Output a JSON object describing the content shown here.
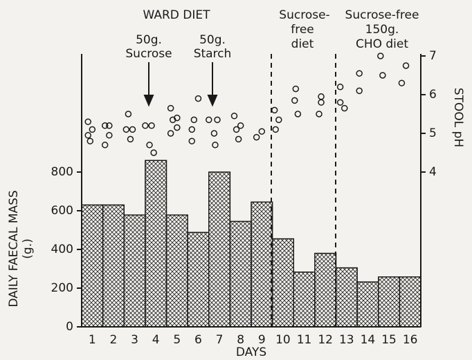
{
  "chart_data": {
    "type": "bar",
    "categories": [
      1,
      2,
      3,
      4,
      5,
      6,
      7,
      8,
      9,
      10,
      11,
      12,
      13,
      14,
      15,
      16
    ],
    "values": [
      630,
      630,
      578,
      860,
      578,
      488,
      800,
      545,
      645,
      455,
      283,
      380,
      305,
      232,
      258,
      258
    ],
    "ylim": [
      0,
      1400
    ],
    "yticks": [
      0,
      200,
      400,
      600,
      800
    ],
    "y_label": [
      "DAILY FAECAL MASS",
      "(g.)"
    ],
    "x_label": "DAYS",
    "y2_label": "STOOL pH",
    "y2lim": [
      0,
      7
    ],
    "y2ticks": [
      4,
      5,
      6,
      7
    ],
    "xlim": [
      0.5,
      16.5
    ],
    "points": {
      "axis": "y2",
      "x": [
        0.8,
        1.0,
        0.8,
        0.9,
        1.6,
        1.8,
        1.8,
        1.6,
        2.7,
        2.6,
        2.9,
        2.8,
        3.5,
        3.8,
        3.7,
        3.9,
        4.7,
        4.8,
        5.0,
        4.7,
        5.0,
        5.8,
        5.7,
        5.7,
        6.0,
        6.5,
        6.9,
        6.75,
        6.8,
        7.7,
        8.0,
        7.8,
        7.9,
        8.75,
        9.0,
        9.6,
        9.8,
        9.65,
        10.6,
        10.55,
        10.7,
        11.8,
        11.8,
        11.7,
        12.7,
        12.7,
        12.9,
        13.6,
        13.6,
        14.6,
        14.7,
        15.6,
        15.8
      ],
      "values": [
        5.3,
        5.1,
        4.95,
        4.8,
        5.2,
        5.2,
        4.95,
        4.7,
        5.5,
        5.1,
        5.1,
        4.85,
        5.2,
        5.2,
        4.7,
        4.5,
        5.65,
        5.35,
        5.4,
        5.0,
        5.15,
        5.35,
        5.1,
        4.8,
        5.9,
        5.35,
        5.35,
        5.0,
        4.7,
        5.45,
        5.2,
        5.1,
        4.85,
        4.9,
        5.05,
        5.6,
        5.35,
        5.1,
        6.15,
        5.85,
        5.5,
        5.95,
        5.8,
        5.5,
        6.2,
        5.8,
        5.65,
        6.55,
        6.1,
        7.0,
        6.5,
        6.3,
        6.75
      ]
    },
    "annotations": [
      "WARD DIET",
      "50g.",
      "Sucrose",
      "50g.",
      "Starch",
      "Sucrose-",
      "free",
      "diet",
      "Sucrose-free",
      "150g.",
      "CHO diet"
    ]
  }
}
